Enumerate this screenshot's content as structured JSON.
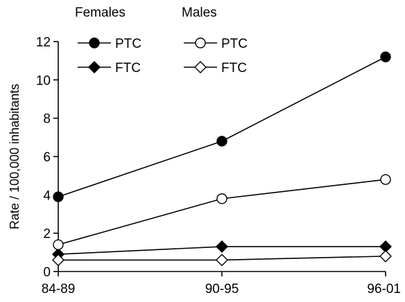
{
  "chart_data": {
    "type": "line",
    "categories": [
      "84-89",
      "90-95",
      "96-01"
    ],
    "ylabel": "Rate / 100,000 inhabitants",
    "xlabel": "",
    "ylim": [
      0,
      12
    ],
    "yticks": [
      0,
      2,
      4,
      6,
      8,
      10,
      12
    ],
    "grid": false,
    "legend": {
      "placement": "top-left",
      "groups": [
        "Females",
        "Males"
      ]
    },
    "series": [
      {
        "name": "PTC",
        "group": "Females",
        "marker": "circle",
        "filled": true,
        "values": [
          3.9,
          6.8,
          11.2
        ]
      },
      {
        "name": "FTC",
        "group": "Females",
        "marker": "diamond",
        "filled": true,
        "values": [
          0.9,
          1.3,
          1.3
        ]
      },
      {
        "name": "PTC",
        "group": "Males",
        "marker": "circle",
        "filled": false,
        "values": [
          1.4,
          3.8,
          4.8
        ]
      },
      {
        "name": "FTC",
        "group": "Males",
        "marker": "diamond",
        "filled": false,
        "values": [
          0.6,
          0.6,
          0.8
        ]
      }
    ],
    "colors": {
      "line": "#000000",
      "fill": "#000000",
      "hollow": "#ffffff"
    }
  }
}
